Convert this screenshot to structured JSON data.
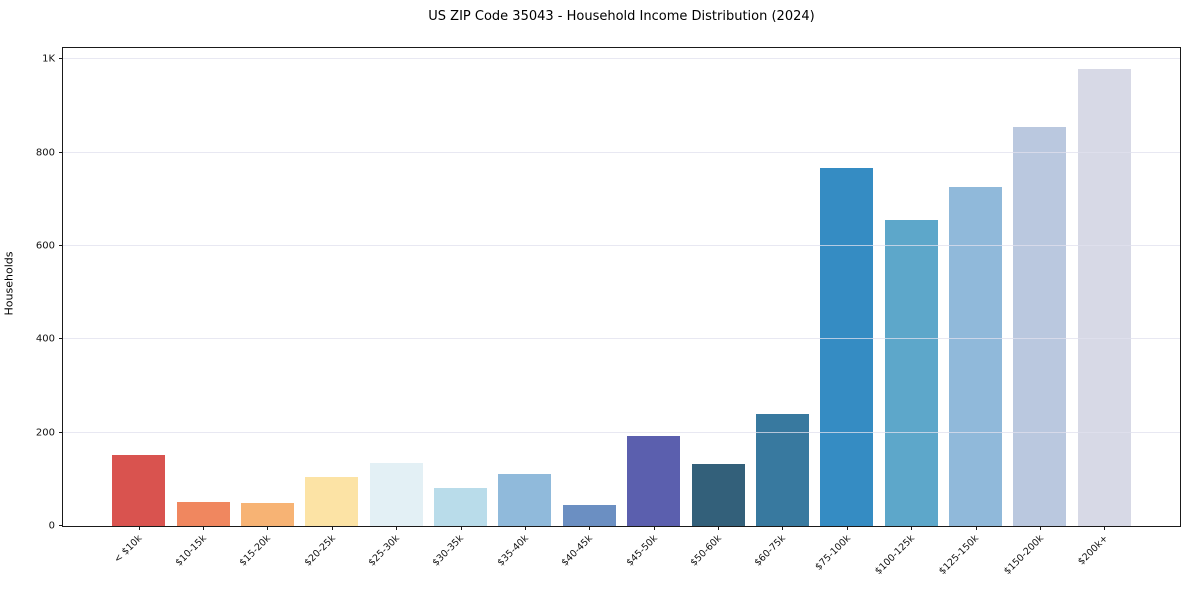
{
  "chart_data": {
    "type": "bar",
    "title": "US ZIP Code 35043 - Household Income Distribution (2024)",
    "xlabel": "",
    "ylabel": "Households",
    "categories": [
      "< $10k",
      "$10-15k",
      "$15-20k",
      "$20-25k",
      "$25-30k",
      "$30-35k",
      "$35-40k",
      "$40-45k",
      "$45-50k",
      "$50-60k",
      "$60-75k",
      "$75-100k",
      "$100-125k",
      "$125-150k",
      "$150-200k",
      "$200k+"
    ],
    "values": [
      152,
      52,
      49,
      105,
      134,
      81,
      111,
      45,
      192,
      132,
      239,
      768,
      655,
      727,
      855,
      978
    ],
    "bar_colors": [
      "#d9534f",
      "#f0875f",
      "#f7b374",
      "#fce3a5",
      "#e3f0f5",
      "#b9dcea",
      "#90badb",
      "#6b8fc2",
      "#5b5fae",
      "#33607a",
      "#38799f",
      "#358cc3",
      "#5da7ca",
      "#90b9da",
      "#bac8df",
      "#d7d9e6"
    ],
    "yticks": {
      "values": [
        0,
        200,
        400,
        600,
        800,
        1000
      ],
      "labels": [
        "0",
        "200",
        "400",
        "600",
        "800",
        "1K"
      ]
    },
    "ylim": [
      0,
      1024
    ],
    "grid": "horizontal",
    "gridline_color": "rgba(224,224,237,0.75)",
    "spine_color": "#1a1a1a",
    "legend": "none"
  }
}
